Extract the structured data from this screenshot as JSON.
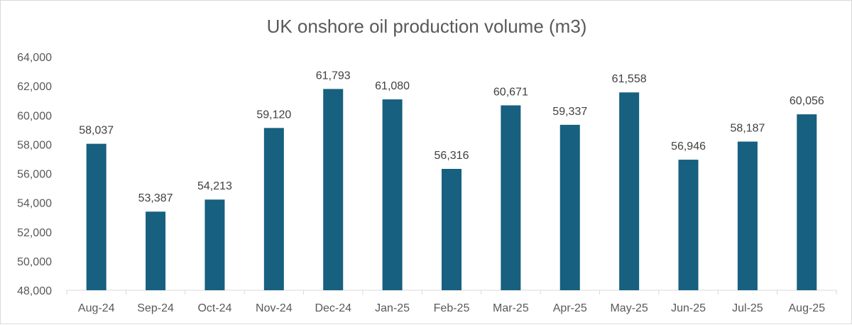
{
  "chart_data": {
    "type": "bar",
    "title": "UK onshore oil production volume (m3)",
    "xlabel": "",
    "ylabel": "",
    "categories": [
      "Aug-24",
      "Sep-24",
      "Oct-24",
      "Nov-24",
      "Dec-24",
      "Jan-25",
      "Feb-25",
      "Mar-25",
      "Apr-25",
      "May-25",
      "Jun-25",
      "Jul-25",
      "Aug-25"
    ],
    "values": [
      58037,
      53387,
      54213,
      59120,
      61793,
      61080,
      56316,
      60671,
      59337,
      61558,
      56946,
      58187,
      60056
    ],
    "value_labels": [
      "58,037",
      "53,387",
      "54,213",
      "59,120",
      "61,793",
      "61,080",
      "56,316",
      "60,671",
      "59,337",
      "61,558",
      "56,946",
      "58,187",
      "60,056"
    ],
    "ylim": [
      48000,
      64000
    ],
    "yticks": [
      48000,
      50000,
      52000,
      54000,
      56000,
      58000,
      60000,
      62000,
      64000
    ],
    "ytick_labels": [
      "48,000",
      "50,000",
      "52,000",
      "54,000",
      "56,000",
      "58,000",
      "60,000",
      "62,000",
      "64,000"
    ],
    "grid": false,
    "legend": "none",
    "bar_color": "#17607f",
    "axis_color": "#d9d9d9"
  }
}
